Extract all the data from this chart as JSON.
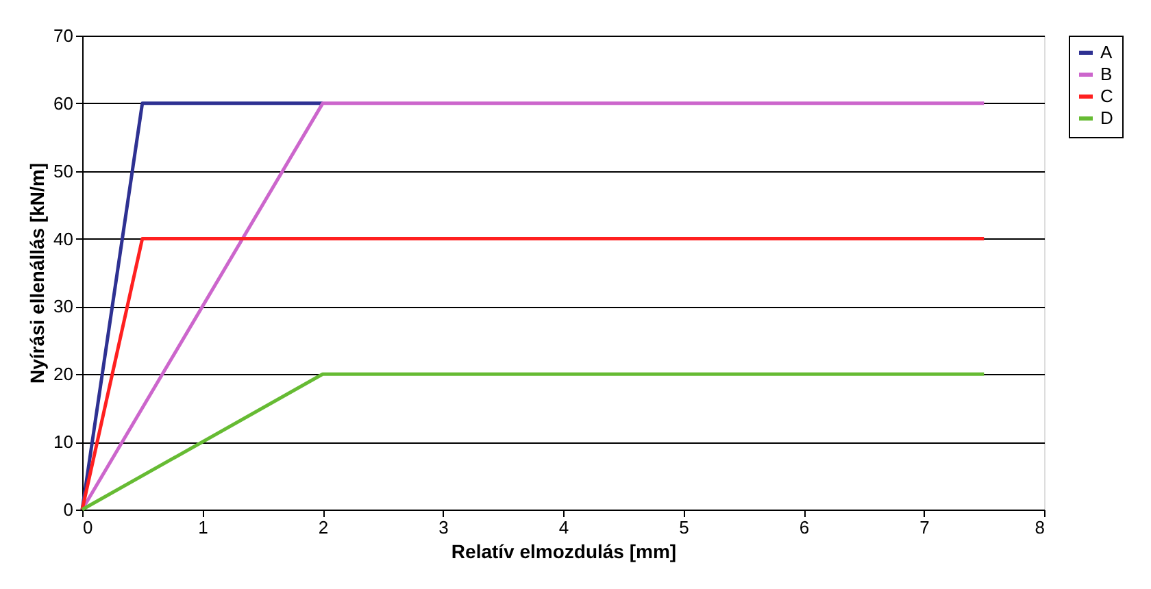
{
  "chart_data": {
    "type": "line",
    "xlabel": "Relatív elmozdulás [mm]",
    "ylabel": "Nyírási ellenállás [kN/m]",
    "xlim": [
      0,
      8
    ],
    "xticks": [
      0,
      1,
      2,
      3,
      4,
      5,
      6,
      7,
      8
    ],
    "ylim": [
      0,
      70
    ],
    "yticks": [
      0,
      10,
      20,
      30,
      40,
      50,
      60,
      70
    ],
    "grid": "y",
    "legend": "right",
    "marker": "none",
    "line_style": "solid",
    "series": [
      {
        "name": "A",
        "color": "#2e3192",
        "x": [
          0,
          0.5,
          2
        ],
        "values": [
          0,
          60,
          60
        ]
      },
      {
        "name": "B",
        "color": "#cc66cc",
        "x": [
          0,
          2,
          7.5
        ],
        "values": [
          0,
          60,
          60
        ]
      },
      {
        "name": "C",
        "color": "#ff2020",
        "x": [
          0,
          0.5,
          7.5
        ],
        "values": [
          0,
          40,
          40
        ]
      },
      {
        "name": "D",
        "color": "#66bb33",
        "x": [
          0,
          2,
          7.5
        ],
        "values": [
          0,
          20,
          20
        ]
      }
    ]
  }
}
